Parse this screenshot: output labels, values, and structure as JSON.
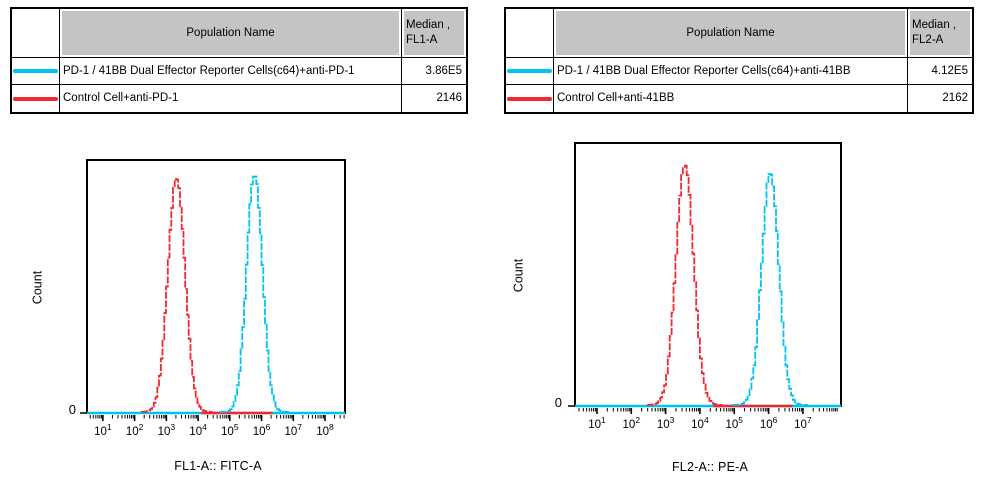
{
  "tables": [
    {
      "header": {
        "population": "Population Name",
        "median_line1": "Median ,",
        "median_line2": "FL1-A"
      },
      "rows": [
        {
          "swatch_color": "#00c3f2",
          "name": "PD-1 / 41BB Dual Effector Reporter Cells(c64)+anti-PD-1",
          "median": "3.86E5"
        },
        {
          "swatch_color": "#f0292e",
          "name": "Control Cell+anti-PD-1",
          "median": "2146"
        }
      ]
    },
    {
      "header": {
        "population": "Population Name",
        "median_line1": "Median ,",
        "median_line2": "FL2-A"
      },
      "rows": [
        {
          "swatch_color": "#00c3f2",
          "name": "PD-1 / 41BB Dual Effector Reporter Cells(c64)+anti-41BB",
          "median": "4.12E5"
        },
        {
          "swatch_color": "#f0292e",
          "name": "Control Cell+anti-41BB",
          "median": "2162"
        }
      ]
    }
  ],
  "chart_data": [
    {
      "type": "line",
      "subtype": "flow-cytometry-histogram",
      "xlabel": "FL1-A:: FITC-A",
      "ylabel": "Count",
      "y_zero_label": "0",
      "x_scale": "log10",
      "x_tick_base": "10",
      "x_major_tick_exponents": [
        1,
        2,
        3,
        4,
        5,
        6,
        7,
        8
      ],
      "x_range_log10": [
        0.5,
        8.63
      ],
      "grid": "off",
      "series": [
        {
          "name": "PD-1 / 41BB Dual Effector Reporter Cells(c64)+anti-PD-1",
          "color": "#00c3f2",
          "median": "3.86E5",
          "peak_log10": 5.78,
          "sigma_log10": 0.25,
          "peak_height_frac": 0.96,
          "baseline_log10": [
            0.5,
            8.63
          ]
        },
        {
          "name": "Control Cell+anti-PD-1",
          "color": "#f0292e",
          "median": "2146",
          "peak_log10": 3.32,
          "sigma_log10": 0.27,
          "peak_height_frac": 0.94,
          "baseline_log10": [
            4.1,
            6.35
          ]
        }
      ]
    },
    {
      "type": "line",
      "subtype": "flow-cytometry-histogram",
      "xlabel": "FL2-A:: PE-A",
      "ylabel": "Count",
      "y_zero_label": "0",
      "x_scale": "log10",
      "x_tick_base": "10",
      "x_major_tick_exponents": [
        1,
        2,
        3,
        4,
        5,
        6,
        7
      ],
      "x_range_log10": [
        0.36,
        8.11
      ],
      "grid": "off",
      "series": [
        {
          "name": "PD-1 / 41BB Dual Effector Reporter Cells(c64)+anti-41BB",
          "color": "#00c3f2",
          "median": "4.12E5",
          "peak_log10": 6.05,
          "sigma_log10": 0.25,
          "peak_height_frac": 0.9,
          "baseline_log10": [
            0.36,
            8.11
          ]
        },
        {
          "name": "Control Cell+anti-41BB",
          "color": "#f0292e",
          "median": "2162",
          "peak_log10": 3.56,
          "sigma_log10": 0.26,
          "peak_height_frac": 0.927,
          "baseline_log10": [
            4.4,
            6.7
          ]
        }
      ]
    }
  ]
}
